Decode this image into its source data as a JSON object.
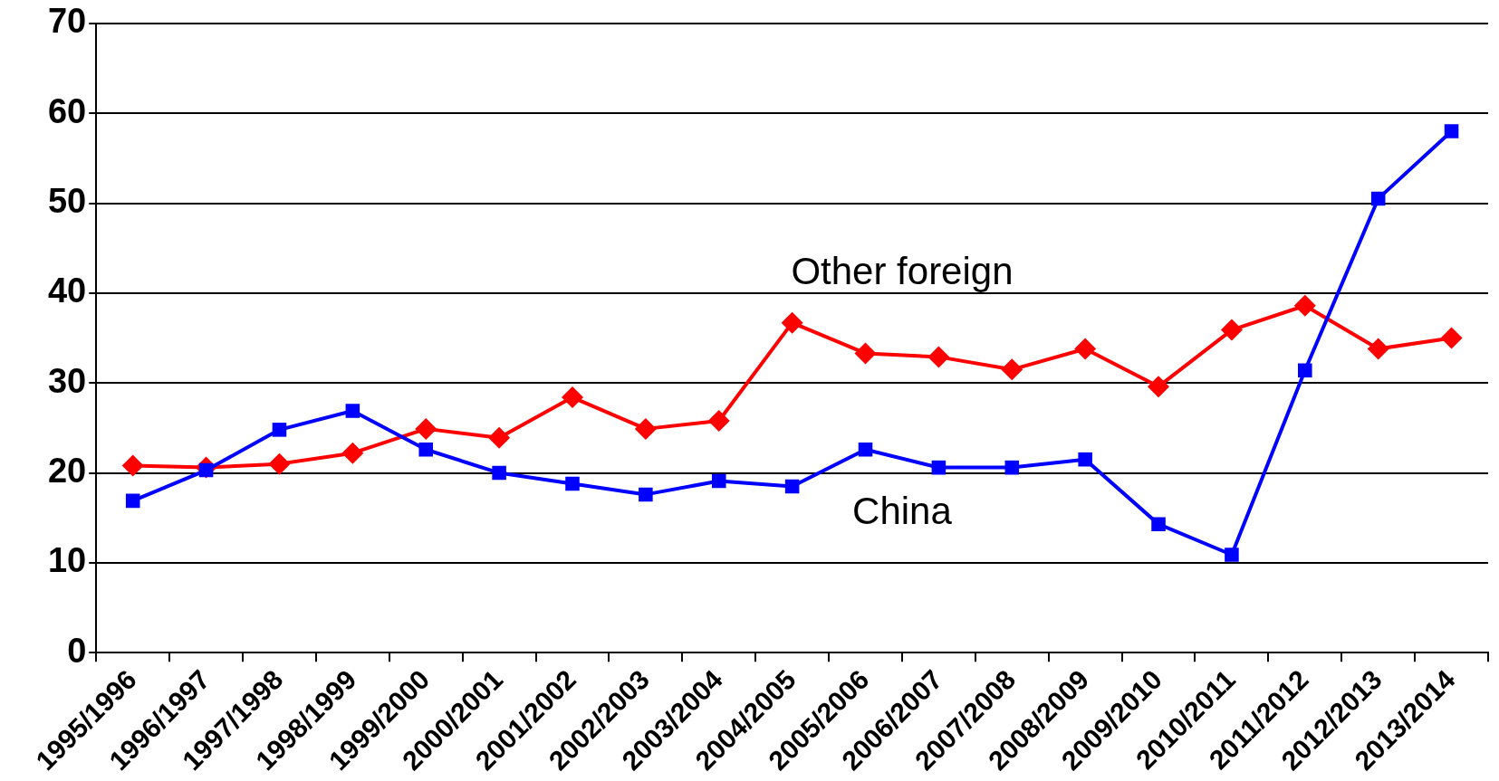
{
  "chart_data": {
    "type": "line",
    "categories": [
      "1995/1996",
      "1996/1997",
      "1997/1998",
      "1998/1999",
      "1999/2000",
      "2000/2001",
      "2001/2002",
      "2002/2003",
      "2003/2004",
      "2004/2005",
      "2005/2006",
      "2006/2007",
      "2007/2008",
      "2008/2009",
      "2009/2010",
      "2010/2011",
      "2011/2012",
      "2012/2013",
      "2013/2014"
    ],
    "series": [
      {
        "name": "China",
        "color": "#0000ff",
        "marker": "square",
        "values": [
          16.9,
          20.3,
          24.8,
          26.9,
          22.6,
          20.0,
          18.8,
          17.6,
          19.1,
          18.5,
          22.6,
          20.6,
          20.6,
          21.5,
          14.3,
          10.9,
          31.4,
          50.5,
          58.0
        ]
      },
      {
        "name": "Other foreign",
        "color": "#ff0000",
        "marker": "diamond",
        "values": [
          20.8,
          20.6,
          21.0,
          22.2,
          24.9,
          23.9,
          28.4,
          24.9,
          25.8,
          36.7,
          33.3,
          32.9,
          31.5,
          33.8,
          29.6,
          35.9,
          38.6,
          33.8,
          35.0
        ]
      }
    ],
    "ylim": [
      0,
      70
    ],
    "yticks": [
      0,
      10,
      20,
      30,
      40,
      50,
      60,
      70
    ],
    "grid": "y",
    "legend": false,
    "line_style": "solid"
  }
}
